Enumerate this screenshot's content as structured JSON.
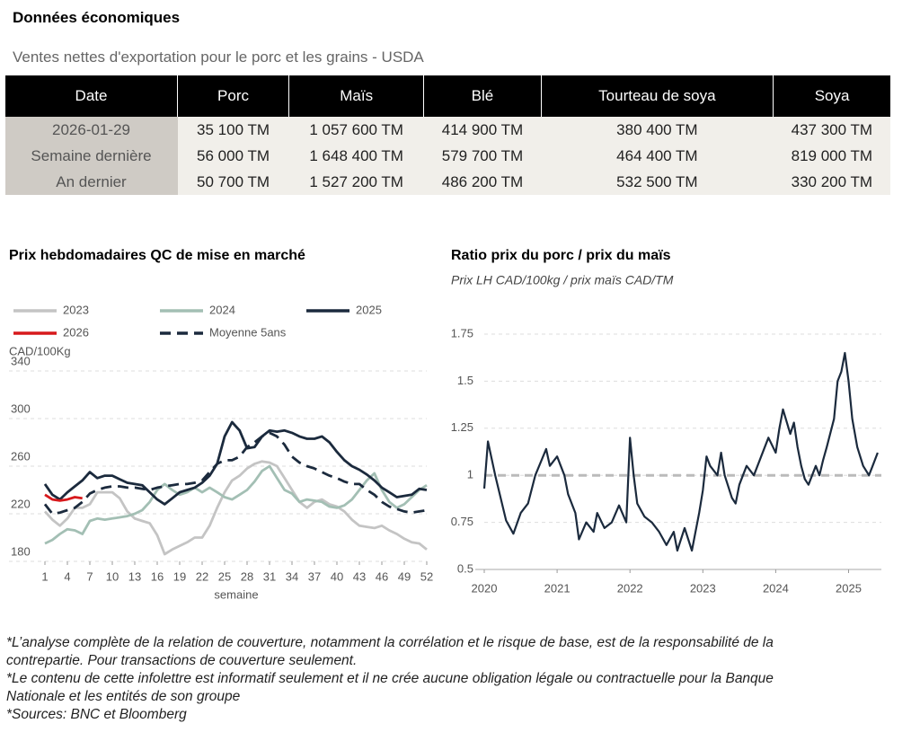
{
  "header": {
    "title": "Données économiques",
    "subtitle": "Ventes nettes d'exportation pour le porc et les grains - USDA"
  },
  "table": {
    "columns": [
      "Date",
      "Porc",
      "Maïs",
      "Blé",
      "Tourteau de soya",
      "Soya"
    ],
    "rows": [
      [
        "2026-01-29",
        "35 100 TM",
        "1 057 600 TM",
        "414 900 TM",
        "380 400 TM",
        "437 300 TM"
      ],
      [
        "Semaine dernière",
        "56 000 TM",
        "1 648 400 TM",
        "579 700 TM",
        "464 400 TM",
        "819 000 TM"
      ],
      [
        "An dernier",
        "50 700 TM",
        "1 527 200 TM",
        "486 200 TM",
        "532 500 TM",
        "330 200 TM"
      ]
    ]
  },
  "chart_data": [
    {
      "type": "line",
      "title": "Prix hebdomadaires QC de mise en marché",
      "ylabel": "CAD/100Kg",
      "xlabel": "semaine",
      "x": [
        1,
        2,
        3,
        4,
        5,
        6,
        7,
        8,
        9,
        10,
        11,
        12,
        13,
        14,
        15,
        16,
        17,
        18,
        19,
        20,
        21,
        22,
        23,
        24,
        25,
        26,
        27,
        28,
        29,
        30,
        31,
        32,
        33,
        34,
        35,
        36,
        37,
        38,
        39,
        40,
        41,
        42,
        43,
        44,
        45,
        46,
        47,
        48,
        49,
        50,
        51,
        52
      ],
      "xlim": [
        1,
        52
      ],
      "xticks": [
        1,
        4,
        7,
        10,
        13,
        16,
        19,
        22,
        25,
        28,
        31,
        34,
        37,
        40,
        43,
        46,
        49,
        52
      ],
      "ylim": [
        180,
        340
      ],
      "yticks": [
        180,
        220,
        260,
        300,
        340
      ],
      "grid": true,
      "series": [
        {
          "name": "2023",
          "color": "#c4c4c4",
          "dashed": false,
          "values": [
            222,
            215,
            210,
            216,
            225,
            225,
            228,
            238,
            238,
            238,
            233,
            222,
            216,
            214,
            212,
            202,
            186,
            190,
            193,
            196,
            200,
            200,
            210,
            225,
            238,
            248,
            252,
            258,
            262,
            264,
            263,
            260,
            250,
            240,
            230,
            225,
            230,
            232,
            228,
            226,
            222,
            215,
            210,
            209,
            208,
            210,
            206,
            203,
            199,
            196,
            195,
            190
          ]
        },
        {
          "name": "2024",
          "color": "#a3bfb4",
          "dashed": false,
          "values": [
            195,
            198,
            203,
            207,
            206,
            203,
            214,
            216,
            215,
            216,
            217,
            218,
            220,
            223,
            230,
            240,
            245,
            240,
            236,
            238,
            242,
            238,
            242,
            238,
            234,
            232,
            236,
            240,
            247,
            256,
            260,
            250,
            240,
            237,
            230,
            232,
            231,
            230,
            226,
            225,
            227,
            232,
            240,
            248,
            254,
            240,
            230,
            225,
            228,
            234,
            240,
            244
          ]
        },
        {
          "name": "2025",
          "color": "#1b2a3d",
          "dashed": false,
          "values": [
            245,
            236,
            232,
            238,
            243,
            248,
            255,
            250,
            252,
            252,
            249,
            246,
            245,
            244,
            238,
            232,
            228,
            233,
            238,
            240,
            242,
            246,
            252,
            262,
            285,
            297,
            290,
            275,
            276,
            285,
            290,
            289,
            290,
            288,
            285,
            283,
            283,
            285,
            280,
            272,
            265,
            260,
            257,
            253,
            248,
            242,
            238,
            234,
            235,
            236,
            241,
            240
          ]
        },
        {
          "name": "2026",
          "color": "#d7191c",
          "dashed": false,
          "values": [
            236,
            232,
            231,
            232,
            234,
            233,
            null,
            null,
            null,
            null,
            null,
            null,
            null,
            null,
            null,
            null,
            null,
            null,
            null,
            null,
            null,
            null,
            null,
            null,
            null,
            null,
            null,
            null,
            null,
            null,
            null,
            null,
            null,
            null,
            null,
            null,
            null,
            null,
            null,
            null,
            null,
            null,
            null,
            null,
            null,
            null,
            null,
            null,
            null,
            null,
            null,
            null
          ]
        },
        {
          "name": "Moyenne 5ans",
          "color": "#1b2a3d",
          "dashed": true,
          "values": [
            228,
            220,
            221,
            223,
            225,
            230,
            237,
            240,
            242,
            243,
            243,
            242,
            242,
            241,
            240,
            242,
            243,
            244,
            245,
            245,
            246,
            248,
            255,
            262,
            265,
            265,
            268,
            276,
            280,
            285,
            288,
            285,
            278,
            268,
            263,
            260,
            258,
            255,
            252,
            250,
            247,
            245,
            245,
            240,
            236,
            230,
            226,
            224,
            222,
            221,
            222,
            223
          ]
        }
      ]
    },
    {
      "type": "line",
      "title": "Ratio prix du porc / prix du maïs",
      "subtitle": "Prix LH CAD/100kg / prix maïs CAD/TM",
      "x": [
        2020.0,
        2020.05,
        2020.15,
        2020.3,
        2020.4,
        2020.5,
        2020.6,
        2020.7,
        2020.85,
        2020.9,
        2021.0,
        2021.1,
        2021.15,
        2021.25,
        2021.3,
        2021.4,
        2021.5,
        2021.55,
        2021.65,
        2021.75,
        2021.85,
        2021.95,
        2022.0,
        2022.05,
        2022.1,
        2022.2,
        2022.3,
        2022.4,
        2022.5,
        2022.6,
        2022.65,
        2022.75,
        2022.85,
        2022.95,
        2023.0,
        2023.05,
        2023.1,
        2023.2,
        2023.25,
        2023.3,
        2023.4,
        2023.45,
        2023.5,
        2023.6,
        2023.7,
        2023.8,
        2023.9,
        2024.0,
        2024.05,
        2024.1,
        2024.2,
        2024.25,
        2024.3,
        2024.35,
        2024.4,
        2024.45,
        2024.55,
        2024.6,
        2024.65,
        2024.7,
        2024.8,
        2024.85,
        2024.9,
        2024.95,
        2025.0,
        2025.05,
        2025.12,
        2025.2,
        2025.28,
        2025.33,
        2025.4
      ],
      "values": [
        0.93,
        1.18,
        1.0,
        0.76,
        0.69,
        0.8,
        0.85,
        1.0,
        1.14,
        1.05,
        1.1,
        1.0,
        0.9,
        0.8,
        0.66,
        0.75,
        0.7,
        0.8,
        0.72,
        0.75,
        0.84,
        0.75,
        1.2,
        1.0,
        0.85,
        0.78,
        0.75,
        0.7,
        0.63,
        0.7,
        0.6,
        0.72,
        0.6,
        0.8,
        0.92,
        1.1,
        1.05,
        1.0,
        1.12,
        1.0,
        0.88,
        0.85,
        0.95,
        1.05,
        1.0,
        1.1,
        1.2,
        1.12,
        1.25,
        1.35,
        1.22,
        1.28,
        1.15,
        1.05,
        0.98,
        0.95,
        1.05,
        1.0,
        1.08,
        1.15,
        1.3,
        1.5,
        1.55,
        1.65,
        1.5,
        1.3,
        1.15,
        1.05,
        1.0,
        1.05,
        1.12
      ],
      "color": "#1b2a3d",
      "xlim": [
        2020,
        2025.45
      ],
      "xticks": [
        2020,
        2021,
        2022,
        2023,
        2024,
        2025
      ],
      "ylim": [
        0.5,
        1.75
      ],
      "yticks": [
        0.5,
        0.75,
        1,
        1.25,
        1.5,
        1.75
      ],
      "grid": true,
      "reference_line": 1
    }
  ],
  "footnotes": [
    "*L’analyse complète de la relation de couverture, notamment la corrélation et le risque de base, est de la responsabilité de la contrepartie. Pour transactions de couverture seulement.",
    "*Le contenu de cette infolettre est informatif seulement et il ne crée aucune obligation légale ou contractuelle pour la Banque Nationale et les entités de son groupe",
    "*Sources: BNC et Bloomberg"
  ]
}
